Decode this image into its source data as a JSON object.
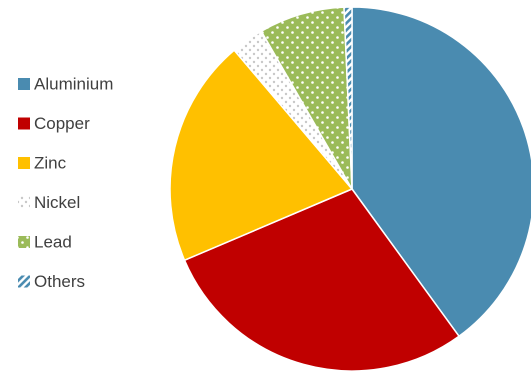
{
  "chart_data": {
    "type": "pie",
    "title": "",
    "legend_position": "left",
    "start_angle_deg": 0,
    "direction": "clockwise",
    "slices": [
      {
        "name": "Aluminium",
        "value": 40.0,
        "color": "#4a8bb0",
        "pattern": "solid"
      },
      {
        "name": "Copper",
        "value": 28.6,
        "color": "#c00000",
        "pattern": "solid"
      },
      {
        "name": "Zinc",
        "value": 20.2,
        "color": "#ffc000",
        "pattern": "solid"
      },
      {
        "name": "Nickel",
        "value": 2.9,
        "color": "#c8c8c8",
        "pattern": "dots-on-white"
      },
      {
        "name": "Lead",
        "value": 7.6,
        "color": "#9bbb59",
        "pattern": "dots-on-color"
      },
      {
        "name": "Others",
        "value": 0.7,
        "color": "#4a8bb0",
        "pattern": "diagonal-stripes"
      }
    ]
  }
}
